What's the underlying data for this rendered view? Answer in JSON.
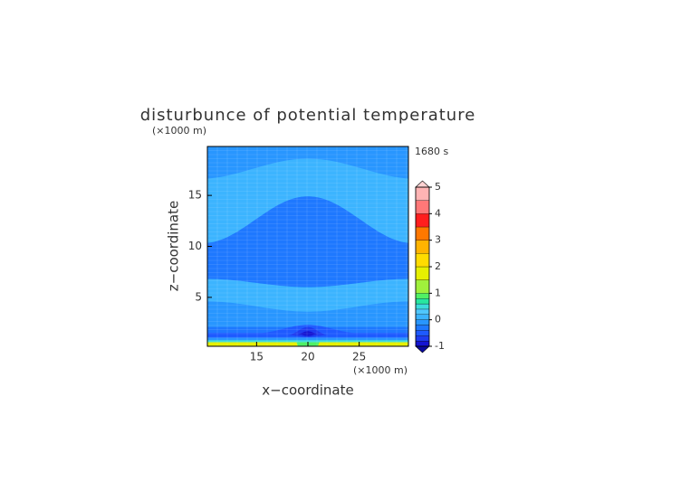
{
  "chart_data": {
    "type": "contour",
    "title": "disturbunce of potential temperature",
    "xlabel": "x−coordinate",
    "ylabel": "z−coordinate",
    "x_unit": "(×1000 m)",
    "y_unit": "(×1000 m)",
    "time_label": "1680 s",
    "xlim": [
      10.2,
      29.8
    ],
    "ylim": [
      0.2,
      19.8
    ],
    "xticks": [
      15,
      20,
      25
    ],
    "yticks": [
      5,
      10,
      15
    ],
    "colorbar": {
      "levels": [
        -1,
        -0.8,
        -0.6,
        -0.4,
        -0.2,
        0,
        0.2,
        0.4,
        0.6,
        0.8,
        1,
        1.5,
        2,
        2.5,
        3,
        3.5,
        4,
        4.5,
        5
      ],
      "colors": [
        "#1414d2",
        "#1e3cf0",
        "#1e5aff",
        "#1e78ff",
        "#2896ff",
        "#3cb4ff",
        "#50c8ff",
        "#3cdcdc",
        "#28e6a0",
        "#50f064",
        "#a0f03c",
        "#e6f000",
        "#ffdc00",
        "#ffb400",
        "#ff7800",
        "#ff1e1e",
        "#ff7878",
        "#ffb4b4"
      ],
      "under_color": "#0a0aa0",
      "over_color": "#ffd2d2",
      "ticks": [
        -1,
        0,
        1,
        2,
        3,
        4,
        5
      ]
    }
  }
}
